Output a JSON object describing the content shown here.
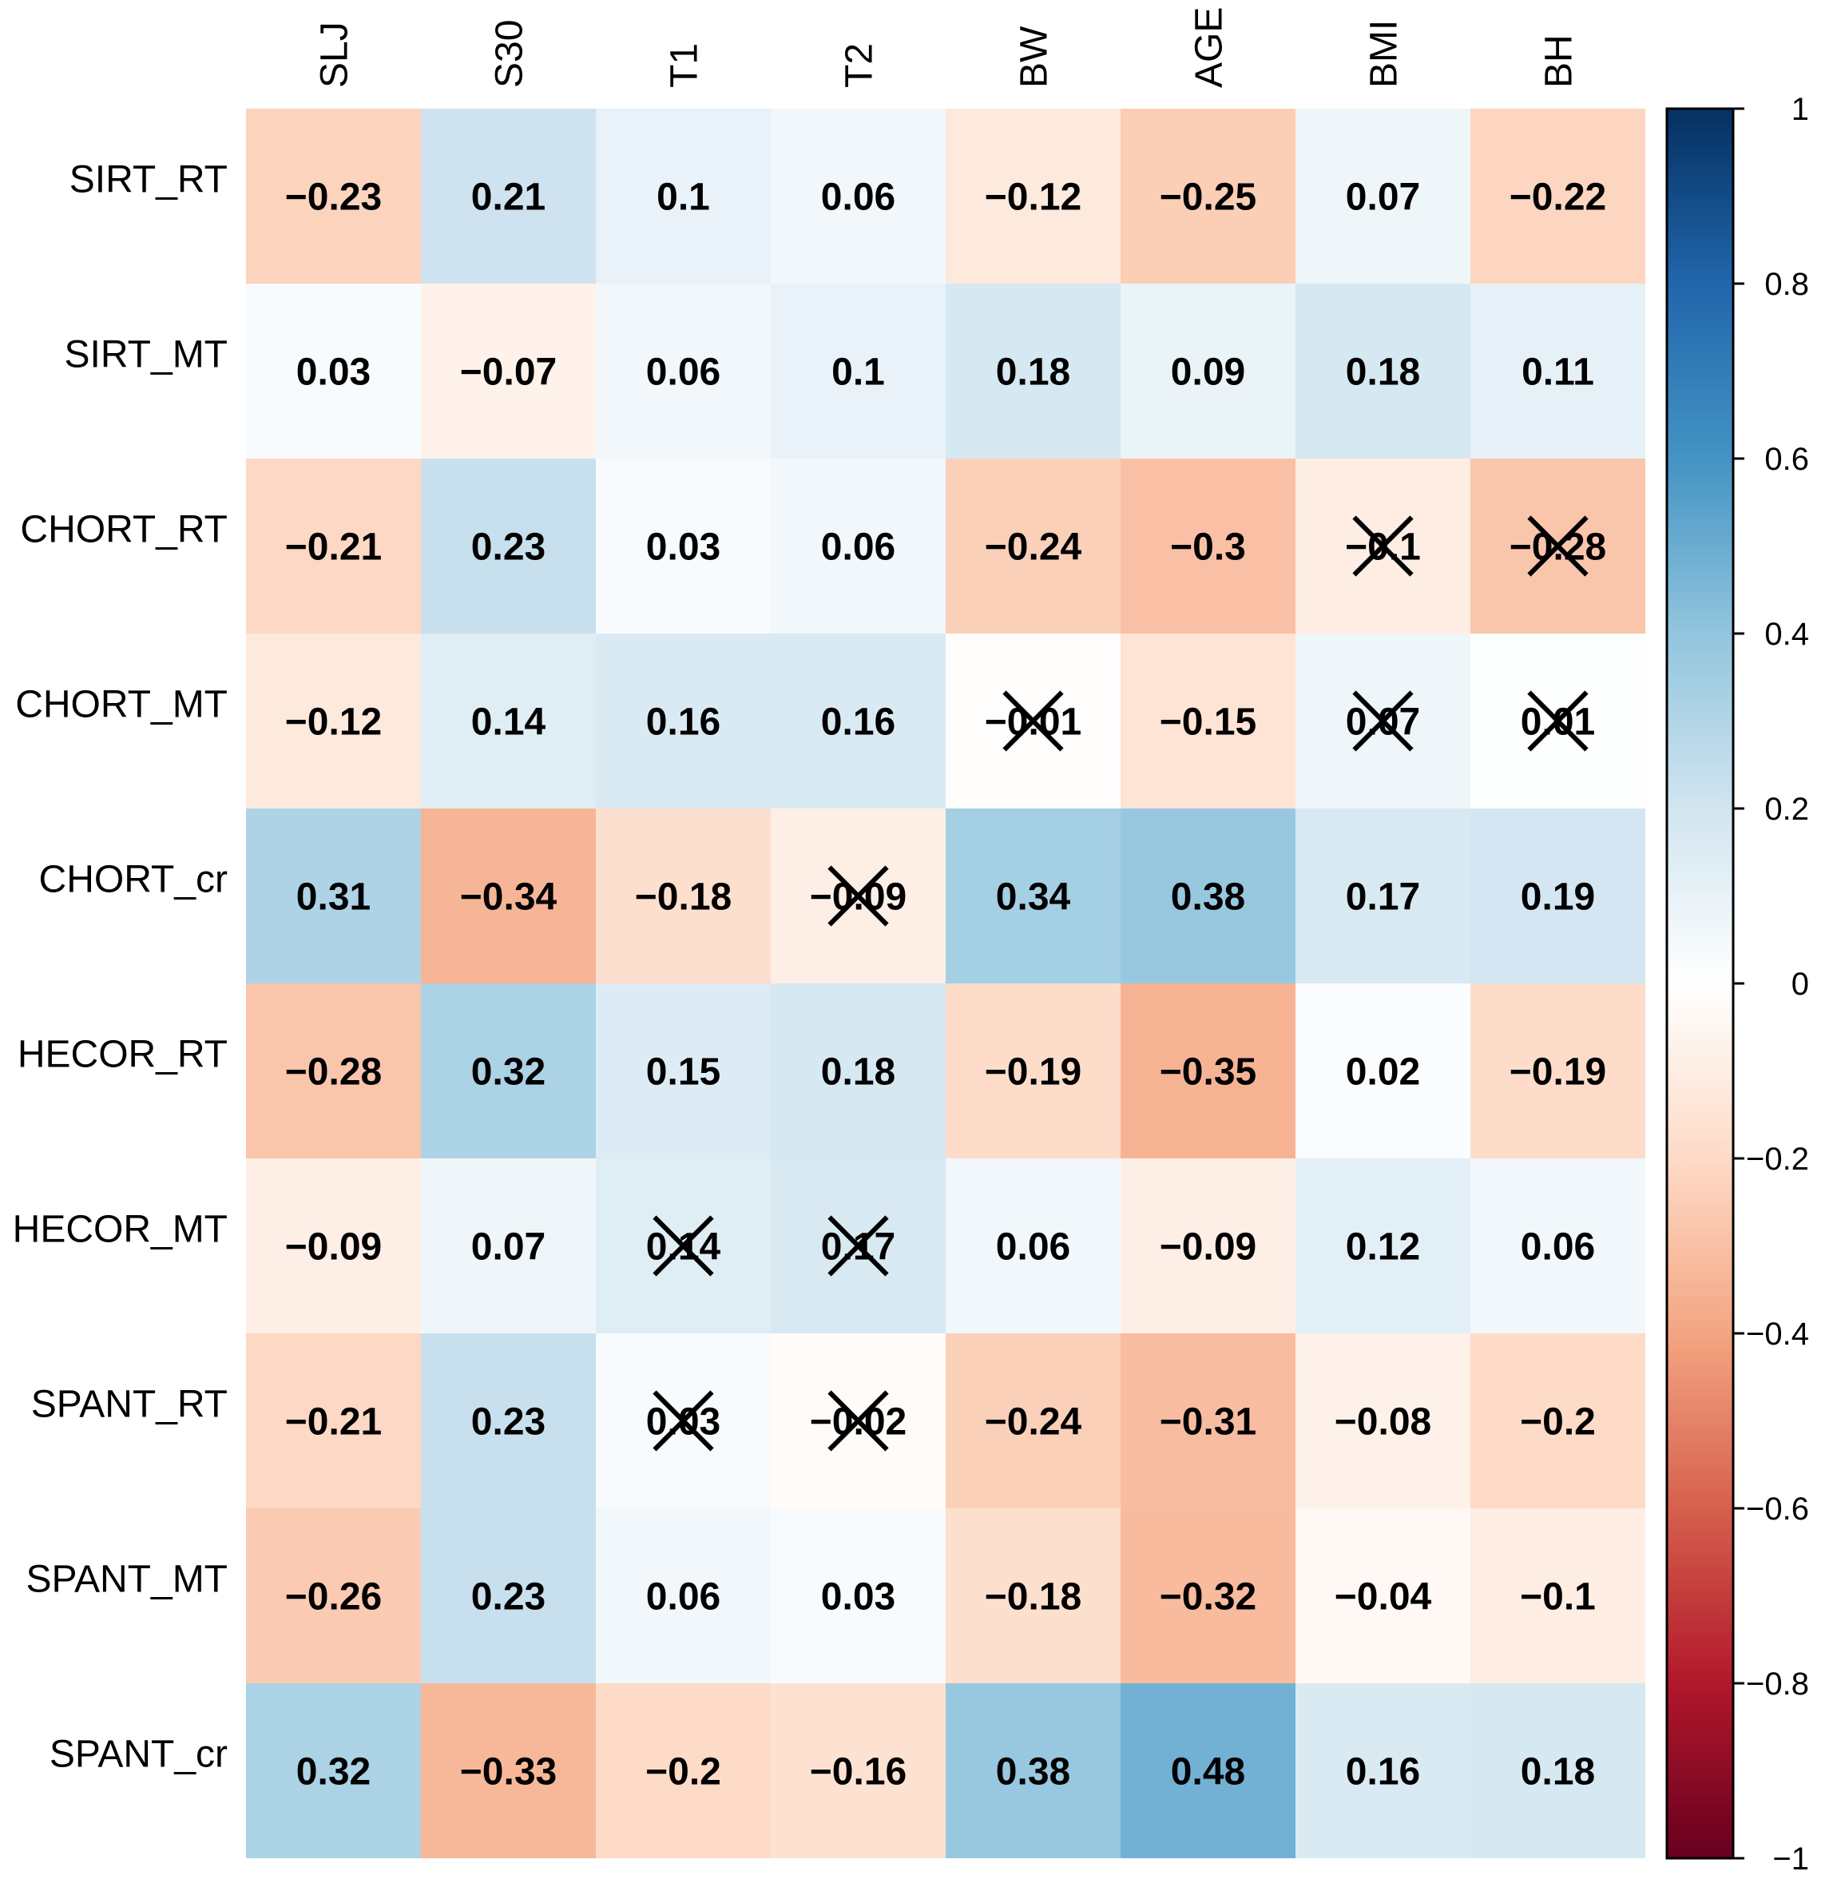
{
  "chart_data": {
    "type": "heatmap",
    "columns": [
      "SLJ",
      "S30",
      "T1",
      "T2",
      "BW",
      "AGE",
      "BMI",
      "BH"
    ],
    "rows": [
      "SIRT_RT",
      "SIRT_MT",
      "CHORT_RT",
      "CHORT_MT",
      "CHORT_cr",
      "HECOR_RT",
      "HECOR_MT",
      "SPANT_RT",
      "SPANT_MT",
      "SPANT_cr"
    ],
    "values": [
      [
        -0.23,
        0.21,
        0.1,
        0.06,
        -0.12,
        -0.25,
        0.07,
        -0.22
      ],
      [
        0.03,
        -0.07,
        0.06,
        0.1,
        0.18,
        0.09,
        0.18,
        0.11
      ],
      [
        -0.21,
        0.23,
        0.03,
        0.06,
        -0.24,
        -0.3,
        -0.1,
        -0.28
      ],
      [
        -0.12,
        0.14,
        0.16,
        0.16,
        -0.01,
        -0.15,
        0.07,
        0.01
      ],
      [
        0.31,
        -0.34,
        -0.18,
        -0.09,
        0.34,
        0.38,
        0.17,
        0.19
      ],
      [
        -0.28,
        0.32,
        0.15,
        0.18,
        -0.19,
        -0.35,
        0.02,
        -0.19
      ],
      [
        -0.09,
        0.07,
        0.14,
        0.17,
        0.06,
        -0.09,
        0.12,
        0.06
      ],
      [
        -0.21,
        0.23,
        0.03,
        -0.02,
        -0.24,
        -0.31,
        -0.08,
        -0.2
      ],
      [
        -0.26,
        0.23,
        0.06,
        0.03,
        -0.18,
        -0.32,
        -0.04,
        -0.1
      ],
      [
        0.32,
        -0.33,
        -0.2,
        -0.16,
        0.38,
        0.48,
        0.16,
        0.18
      ]
    ],
    "labels": [
      [
        "−0.23",
        "0.21",
        "0.1",
        "0.06",
        "−0.12",
        "−0.25",
        "0.07",
        "−0.22"
      ],
      [
        "0.03",
        "−0.07",
        "0.06",
        "0.1",
        "0.18",
        "0.09",
        "0.18",
        "0.11"
      ],
      [
        "−0.21",
        "0.23",
        "0.03",
        "0.06",
        "−0.24",
        "−0.3",
        "−0.1",
        "−0.28"
      ],
      [
        "−0.12",
        "0.14",
        "0.16",
        "0.16",
        "−0.01",
        "−0.15",
        "0.07",
        "0.01"
      ],
      [
        "0.31",
        "−0.34",
        "−0.18",
        "−0.09",
        "0.34",
        "0.38",
        "0.17",
        "0.19"
      ],
      [
        "−0.28",
        "0.32",
        "0.15",
        "0.18",
        "−0.19",
        "−0.35",
        "0.02",
        "−0.19"
      ],
      [
        "−0.09",
        "0.07",
        "0.14",
        "0.17",
        "0.06",
        "−0.09",
        "0.12",
        "0.06"
      ],
      [
        "−0.21",
        "0.23",
        "0.03",
        "−0.02",
        "−0.24",
        "−0.31",
        "−0.08",
        "−0.2"
      ],
      [
        "−0.26",
        "0.23",
        "0.06",
        "0.03",
        "−0.18",
        "−0.32",
        "−0.04",
        "−0.1"
      ],
      [
        "0.32",
        "−0.33",
        "−0.2",
        "−0.16",
        "0.38",
        "0.48",
        "0.16",
        "0.18"
      ]
    ],
    "crossed": [
      [
        false,
        false,
        false,
        false,
        false,
        false,
        false,
        false
      ],
      [
        false,
        false,
        false,
        false,
        false,
        false,
        false,
        false
      ],
      [
        false,
        false,
        false,
        false,
        false,
        false,
        true,
        true
      ],
      [
        false,
        false,
        false,
        false,
        true,
        false,
        true,
        true
      ],
      [
        false,
        false,
        false,
        true,
        false,
        false,
        false,
        false
      ],
      [
        false,
        false,
        false,
        false,
        false,
        false,
        false,
        false
      ],
      [
        false,
        false,
        true,
        true,
        false,
        false,
        false,
        false
      ],
      [
        false,
        false,
        true,
        true,
        false,
        false,
        false,
        false
      ],
      [
        false,
        false,
        false,
        false,
        false,
        false,
        false,
        false
      ],
      [
        false,
        false,
        false,
        false,
        false,
        false,
        false,
        false
      ]
    ],
    "colorbar": {
      "range": [
        -1,
        1
      ],
      "ticks": [
        1,
        0.8,
        0.6,
        0.4,
        0.2,
        0,
        -0.2,
        -0.4,
        -0.6,
        -0.8,
        -1
      ],
      "tick_labels": [
        "1",
        "0.8",
        "0.6",
        "0.4",
        "0.2",
        "0",
        "−0.2",
        "−0.4",
        "−0.6",
        "−0.8",
        "−1"
      ],
      "palette": [
        "#67001F",
        "#B2182B",
        "#D6604D",
        "#F4A582",
        "#FDDBC7",
        "#FFFFFF",
        "#D1E5F0",
        "#92C5DE",
        "#4393C3",
        "#2166AC",
        "#053061"
      ]
    },
    "legend_position": "right"
  }
}
